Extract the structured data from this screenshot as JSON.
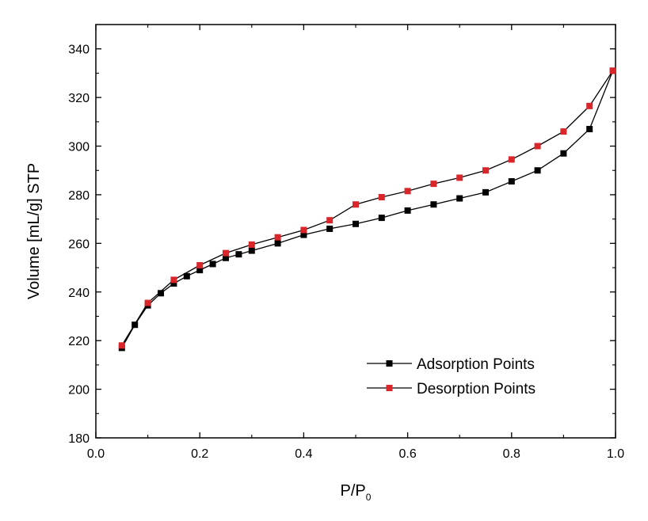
{
  "chart_data": {
    "type": "line",
    "xlabel": "P/P",
    "xlabel_sub": "0",
    "ylabel": "Volume [mL/g] STP",
    "xlim": [
      0.0,
      1.0
    ],
    "ylim": [
      180,
      350
    ],
    "xticks": [
      0.0,
      0.2,
      0.4,
      0.6,
      0.8,
      1.0
    ],
    "xtick_labels": [
      "0.0",
      "0.2",
      "0.4",
      "0.6",
      "0.8",
      "1.0"
    ],
    "yticks": [
      180,
      200,
      220,
      240,
      260,
      280,
      300,
      320,
      340
    ],
    "ytick_labels": [
      "180",
      "200",
      "220",
      "240",
      "260",
      "280",
      "300",
      "320",
      "340"
    ],
    "legend_position": "bottom-right",
    "series": [
      {
        "name": "Adsorption Points",
        "color": "#000000",
        "marker": "square",
        "x": [
          0.05,
          0.075,
          0.1,
          0.125,
          0.15,
          0.175,
          0.2,
          0.225,
          0.25,
          0.275,
          0.3,
          0.35,
          0.4,
          0.45,
          0.5,
          0.55,
          0.6,
          0.65,
          0.7,
          0.75,
          0.8,
          0.85,
          0.9,
          0.95,
          0.995
        ],
        "y": [
          217,
          226.5,
          234.5,
          239.5,
          243.5,
          246.5,
          249,
          251.5,
          254,
          255.5,
          257,
          260,
          263.5,
          266,
          268,
          270.5,
          273.5,
          276,
          278.5,
          281,
          285.5,
          290,
          297,
          307,
          331
        ]
      },
      {
        "name": "Desorption Points",
        "color": "#d9262b",
        "marker": "square",
        "x": [
          0.995,
          0.95,
          0.9,
          0.85,
          0.8,
          0.75,
          0.7,
          0.65,
          0.6,
          0.55,
          0.5,
          0.45,
          0.4,
          0.35,
          0.3,
          0.25,
          0.2,
          0.15,
          0.1,
          0.05
        ],
        "y": [
          331,
          316.5,
          306,
          300,
          294.5,
          290,
          287,
          284.5,
          281.5,
          279,
          276,
          269.5,
          265.5,
          262.5,
          259.5,
          256,
          251,
          245,
          235.5,
          218
        ]
      }
    ]
  }
}
